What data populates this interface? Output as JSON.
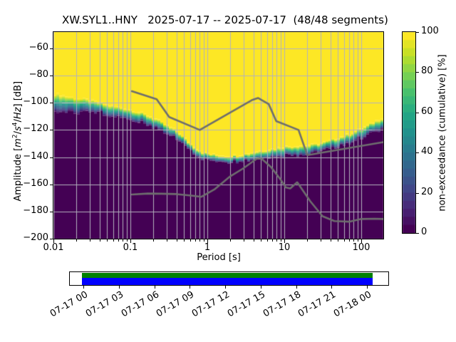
{
  "title": "XW.SYL1..HNY   2025-07-17 -- 2025-07-17  (48/48 segments)",
  "axes": {
    "xlabel": "Period [s]",
    "ylabel": {
      "p1": "Amplitude [",
      "m": "m",
      "m_exp": "2",
      "sl1": "/",
      "s": "s",
      "s_exp": "4",
      "sl2": "/",
      "hz": "Hz",
      "p2": "] [dB]"
    }
  },
  "colorbar": {
    "label": "non-exceedance (cumulative) [%]",
    "ticks": [
      {
        "v": 0,
        "label": "0"
      },
      {
        "v": 20,
        "label": "20"
      },
      {
        "v": 40,
        "label": "40"
      },
      {
        "v": 60,
        "label": "60"
      },
      {
        "v": 80,
        "label": "80"
      },
      {
        "v": 100,
        "label": "100"
      }
    ]
  },
  "timeline": {
    "labels": [
      "07-17 00",
      "07-17 03",
      "07-17 06",
      "07-17 09",
      "07-17 12",
      "07-17 15",
      "07-17 18",
      "07-17 21",
      "07-18 00"
    ],
    "coverage_color": "#008000",
    "used_color": "#0000ff"
  },
  "chart_data": {
    "type": "heatmap",
    "title": "XW.SYL1..HNY   2025-07-17 -- 2025-07-17  (48/48 segments)",
    "xlabel": "Period [s]",
    "ylabel": "Amplitude [m2/s4/Hz] [dB]",
    "colorbar_label": "non-exceedance (cumulative) [%]",
    "x_scale": "log",
    "x_range": [
      0.01,
      195
    ],
    "y_range": [
      -200,
      -48
    ],
    "value_range": [
      0,
      100
    ],
    "grid": true,
    "x_ticks": [
      {
        "v": 0.01,
        "label": "0.01"
      },
      {
        "v": 0.1,
        "label": "0.1"
      },
      {
        "v": 1,
        "label": "1"
      },
      {
        "v": 10,
        "label": "10"
      },
      {
        "v": 100,
        "label": "100"
      }
    ],
    "y_ticks": [
      {
        "v": -60,
        "label": "−60"
      },
      {
        "v": -80,
        "label": "−80"
      },
      {
        "v": -100,
        "label": "−100"
      },
      {
        "v": -120,
        "label": "−120"
      },
      {
        "v": -140,
        "label": "−140"
      },
      {
        "v": -160,
        "label": "−160"
      },
      {
        "v": -180,
        "label": "−180"
      },
      {
        "v": -200,
        "label": "−200"
      }
    ],
    "periods_per_octave": 8,
    "yellow_edge_db": [
      [
        0.01,
        -93
      ],
      [
        0.016,
        -95.5
      ],
      [
        0.024,
        -97
      ],
      [
        0.035,
        -99
      ],
      [
        0.05,
        -101.5
      ],
      [
        0.075,
        -103.2
      ],
      [
        0.105,
        -105.2
      ],
      [
        0.15,
        -108
      ],
      [
        0.22,
        -112
      ],
      [
        0.3,
        -116.5
      ],
      [
        0.42,
        -121.5
      ],
      [
        0.55,
        -128
      ],
      [
        0.7,
        -133
      ],
      [
        0.9,
        -136.5
      ],
      [
        1.3,
        -138.2
      ],
      [
        1.9,
        -139
      ],
      [
        2.8,
        -138
      ],
      [
        4.3,
        -135.8
      ],
      [
        6.6,
        -134
      ],
      [
        10,
        -132.2
      ],
      [
        15,
        -131.4
      ],
      [
        21,
        -131.2
      ],
      [
        30,
        -129.5
      ],
      [
        45,
        -126.5
      ],
      [
        70,
        -123
      ],
      [
        100,
        -119
      ],
      [
        140,
        -114.5
      ],
      [
        195,
        -110.5
      ]
    ],
    "band_width_db": [
      [
        0.01,
        13
      ],
      [
        0.02,
        10
      ],
      [
        0.04,
        7.5
      ],
      [
        0.1,
        7
      ],
      [
        0.3,
        6
      ],
      [
        0.7,
        5
      ],
      [
        2,
        4.5
      ],
      [
        6,
        5.5
      ],
      [
        12,
        7
      ],
      [
        20,
        6.5
      ],
      [
        50,
        6
      ],
      [
        100,
        7
      ],
      [
        195,
        7.5
      ]
    ],
    "noise_models": {
      "high": [
        [
          0.105,
          -91.5
        ],
        [
          0.22,
          -97.4
        ],
        [
          0.32,
          -110.5
        ],
        [
          0.8,
          -120.0
        ],
        [
          3.8,
          -98.1
        ],
        [
          4.6,
          -96.5
        ],
        [
          6.3,
          -101.0
        ],
        [
          7.9,
          -113.5
        ],
        [
          15.4,
          -120.0
        ],
        [
          20.0,
          -138.5
        ],
        [
          195,
          -129.0
        ]
      ],
      "low": [
        [
          0.105,
          -167.5
        ],
        [
          0.17,
          -166.8
        ],
        [
          0.25,
          -166.9
        ],
        [
          0.4,
          -167.2
        ],
        [
          0.62,
          -168.3
        ],
        [
          0.84,
          -169.2
        ],
        [
          1.26,
          -163.5
        ],
        [
          1.95,
          -154.5
        ],
        [
          2.9,
          -148.5
        ],
        [
          4.4,
          -141.2
        ],
        [
          5.1,
          -141.2
        ],
        [
          6.8,
          -147.5
        ],
        [
          9.0,
          -156.5
        ],
        [
          10.5,
          -162.3
        ],
        [
          12.0,
          -163.0
        ],
        [
          14.8,
          -158.5
        ],
        [
          21.9,
          -172.5
        ],
        [
          31.6,
          -183.5
        ],
        [
          45,
          -187.0
        ],
        [
          70,
          -187.5
        ],
        [
          101,
          -185.5
        ],
        [
          150,
          -185.3
        ],
        [
          195,
          -185.5
        ]
      ]
    },
    "colors": {
      "line_gray": "#6e6e6e",
      "grid": "#b2b2bd",
      "viridis": [
        "#440154",
        "#482475",
        "#414487",
        "#355f8d",
        "#2a788e",
        "#21918c",
        "#22a884",
        "#44bf70",
        "#7ad151",
        "#bddf26",
        "#fde725"
      ]
    },
    "timeline_ticks": [
      "07-17 00",
      "07-17 03",
      "07-17 06",
      "07-17 09",
      "07-17 12",
      "07-17 15",
      "07-17 18",
      "07-17 21",
      "07-18 00"
    ]
  }
}
